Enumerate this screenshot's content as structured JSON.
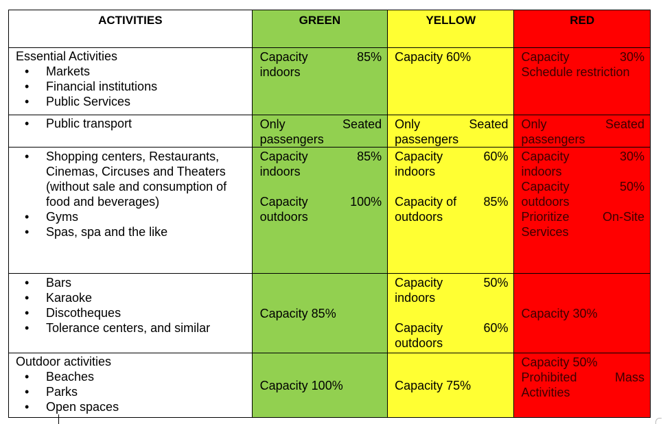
{
  "headers": {
    "activities": "ACTIVITIES",
    "green": "GREEN",
    "yellow": "YELLOW",
    "red": "RED"
  },
  "colors": {
    "green": "#92d050",
    "yellow": "#ffff33",
    "red": "#ff0000"
  },
  "rows": [
    {
      "lead": "Essential Activities",
      "items": [
        "Markets",
        "Financial institutions",
        "Public Services"
      ],
      "green": {
        "a": "Capacity",
        "b": "85%",
        "c": "indoors"
      },
      "yellow": "Capacity 60%",
      "red": {
        "a": "Capacity",
        "b": "30%",
        "c": "Schedule restriction"
      }
    },
    {
      "items": [
        "Public transport"
      ],
      "green": {
        "a": "Only",
        "b": "Seated",
        "c": "passengers"
      },
      "yellow": {
        "a": "Only",
        "b": "Seated",
        "c": "passengers"
      },
      "red": {
        "a": "Only",
        "b": "Seated",
        "c": "passengers"
      }
    },
    {
      "items": [
        "Shopping centers, Restaurants, Cinemas, Circuses and Theaters (without sale and consumption of food and beverages)",
        "Gyms",
        "Spas, spa and the like"
      ],
      "green": {
        "a1": "Capacity",
        "b1": "85%",
        "c1": "indoors",
        "a2": "Capacity",
        "b2": "100%",
        "c2": "outdoors"
      },
      "yellow": {
        "a1": "Capacity",
        "b1": "60%",
        "c1": "indoors",
        "a2": "Capacity of",
        "b2": "85%",
        "c2": "outdoors"
      },
      "red": {
        "a1": "Capacity",
        "b1": "30%",
        "c1": "indoors",
        "a2": "Capacity",
        "b2": "50%",
        "c2": "outdoors",
        "a3": "Prioritize",
        "b3": "On-Site",
        "c3": "Services"
      }
    },
    {
      "items": [
        "Bars",
        "Karaoke",
        "Discotheques",
        "Tolerance centers, and similar"
      ],
      "green": "Capacity 85%",
      "yellow": {
        "a1": "Capacity",
        "b1": "50%",
        "c1": "indoors",
        "a2": "Capacity",
        "b2": "60%",
        "c2": "outdoors"
      },
      "red": "Capacity 30%"
    },
    {
      "lead": "Outdoor activities",
      "items": [
        "Beaches",
        "Parks",
        "Open spaces"
      ],
      "green": "Capacity 100%",
      "yellow": "Capacity 75%",
      "red": {
        "a": "Capacity 50%",
        "b1": "Prohibited",
        "b2": "Mass",
        "c": "Activities"
      }
    }
  ]
}
